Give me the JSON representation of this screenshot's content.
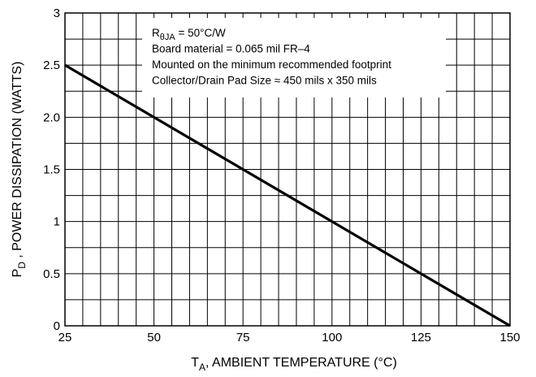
{
  "chart_data": {
    "type": "line",
    "title": "",
    "xlabel": {
      "main": "T",
      "sub": "A",
      "rest": ", AMBIENT TEMPERATURE (°C)"
    },
    "ylabel": {
      "main": "P",
      "sub": "D",
      "rest": " , POWER DISSIPATION (WATTS)"
    },
    "xlim": [
      25,
      150
    ],
    "ylim": [
      0,
      3
    ],
    "x_ticks": [
      "25",
      "50",
      "75",
      "100",
      "125",
      "150"
    ],
    "y_ticks": [
      "0",
      "0.5",
      "1",
      "1.5",
      "2.0",
      "2.5",
      "3"
    ],
    "grid": true,
    "series": [
      {
        "x": [
          25,
          150
        ],
        "y": [
          2.5,
          0
        ],
        "color": "#000000"
      }
    ],
    "annotation": [
      {
        "main": "R",
        "sub": "θJA",
        "rest": " = 50°C/W"
      },
      {
        "main": "Board material = 0.065 mil FR–4",
        "sub": "",
        "rest": ""
      },
      {
        "main": "Mounted on the minimum recommended footprint",
        "sub": "",
        "rest": ""
      },
      {
        "main": "Collector/Drain Pad Size ≈ 450 mils x 350 mils",
        "sub": "",
        "rest": ""
      }
    ]
  }
}
